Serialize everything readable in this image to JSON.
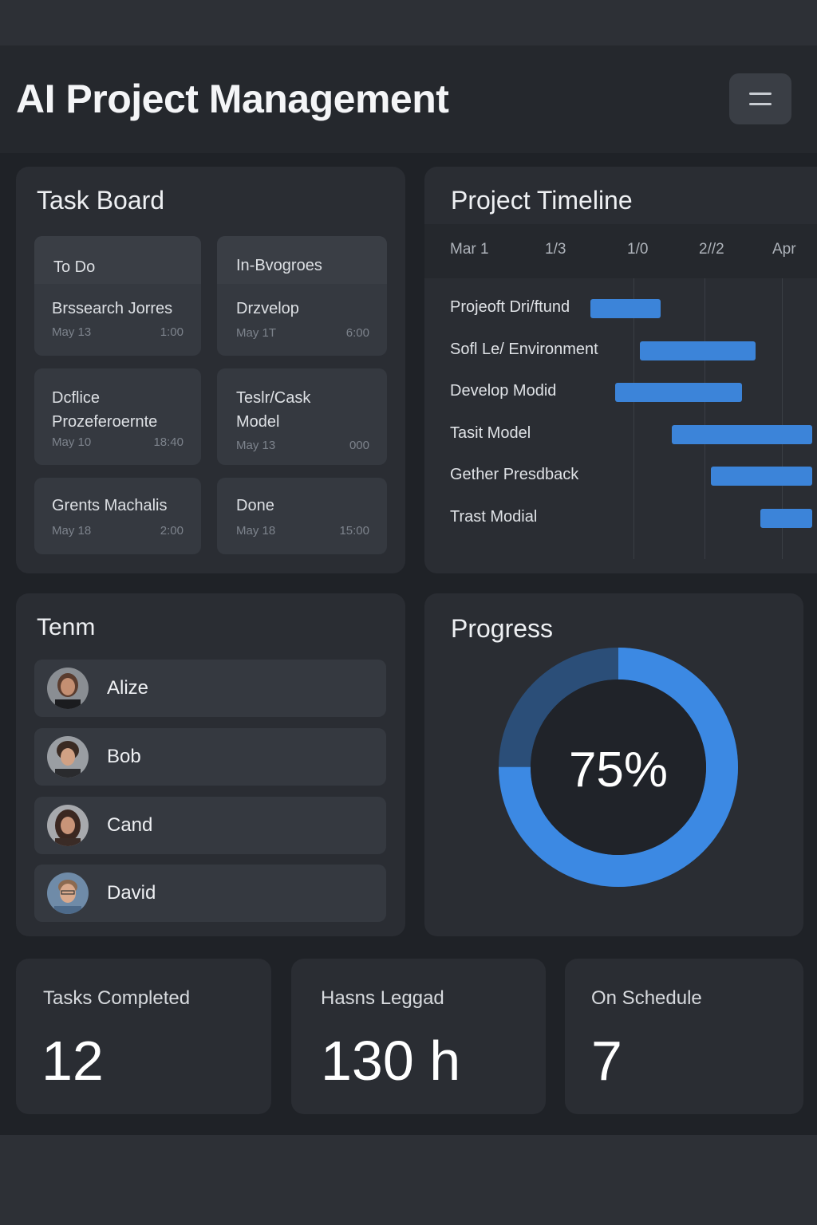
{
  "header": {
    "title": "AI Project Management",
    "menu_icon": "hamburger-icon"
  },
  "task_board": {
    "title": "Task Board",
    "cards": [
      {
        "title": "To Do",
        "subtitle": "Brssearch Jorres",
        "date": "May 13",
        "time": "1:00"
      },
      {
        "title": "In-Bvogroes",
        "subtitle": "Drzvelop",
        "date": "May 1T",
        "time": "6:00"
      },
      {
        "title": "Dcflice Prozeferoernte",
        "date": "May 10",
        "time": "18:40"
      },
      {
        "title": "Teslr/Cask Model",
        "date": "May 13",
        "time": "000"
      },
      {
        "title": "Grents Machalis",
        "date": "May 18",
        "time": "2:00"
      },
      {
        "title": "Done",
        "date": "May 18",
        "time": "15:00"
      }
    ]
  },
  "timeline": {
    "title": "Project Timeline",
    "dates": [
      "Mar 1",
      "1/3",
      "1/0",
      "2//2",
      "Apr"
    ],
    "tasks": [
      {
        "label": "Projeoft Dri/ftund",
        "start": 0.0,
        "end": 0.33
      },
      {
        "label": "Sofl Le/ Environment",
        "start": 0.22,
        "end": 0.75
      },
      {
        "label": "Develop Modid",
        "start": 0.11,
        "end": 0.69
      },
      {
        "label": "Tasit Model",
        "start": 0.36,
        "end": 1.0
      },
      {
        "label": "Gether Presdback",
        "start": 0.53,
        "end": 1.0
      },
      {
        "label": "Trast Modial",
        "start": 0.75,
        "end": 1.0
      }
    ],
    "bar_color": "#3c84d9"
  },
  "team": {
    "title": "Tenm",
    "members": [
      {
        "name": "Alize"
      },
      {
        "name": "Bob"
      },
      {
        "name": "Cand"
      },
      {
        "name": "David"
      }
    ]
  },
  "progress": {
    "title": "Progress",
    "percent_label": "75%",
    "value": 0.75,
    "fill_color": "#3c89e3",
    "track_color": "#2b4e78"
  },
  "stats": [
    {
      "label": "Tasks Completed",
      "value": "12"
    },
    {
      "label": "Hasns Leggad",
      "value": "130 h"
    },
    {
      "label": "On Schedule",
      "value": "7"
    }
  ]
}
